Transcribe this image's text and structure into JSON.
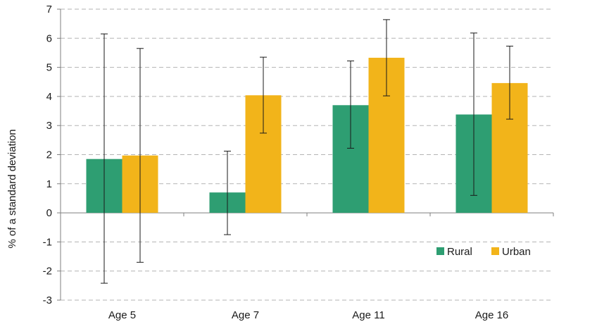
{
  "chart_data": {
    "type": "bar",
    "title": "",
    "xlabel": "",
    "ylabel": "% of a standard deviation",
    "ylim": [
      -3,
      7
    ],
    "yticks": [
      -3,
      -2,
      -1,
      0,
      1,
      2,
      3,
      4,
      5,
      6,
      7
    ],
    "grid": "horizontal dashed",
    "legend_position": "bottom-right",
    "categories": [
      "Age 5",
      "Age 7",
      "Age 11",
      "Age 16"
    ],
    "series": [
      {
        "name": "Rural",
        "color": "#2e9e72",
        "values": [
          1.85,
          0.7,
          3.7,
          3.38
        ],
        "error_low": [
          -2.42,
          -0.75,
          2.22,
          0.6
        ],
        "error_high": [
          6.15,
          2.12,
          5.22,
          6.18
        ]
      },
      {
        "name": "Urban",
        "color": "#f2b41a",
        "values": [
          1.97,
          4.04,
          5.33,
          4.46
        ],
        "error_low": [
          -1.7,
          2.74,
          4.02,
          3.22
        ],
        "error_high": [
          5.65,
          5.35,
          6.64,
          5.73
        ]
      }
    ]
  }
}
